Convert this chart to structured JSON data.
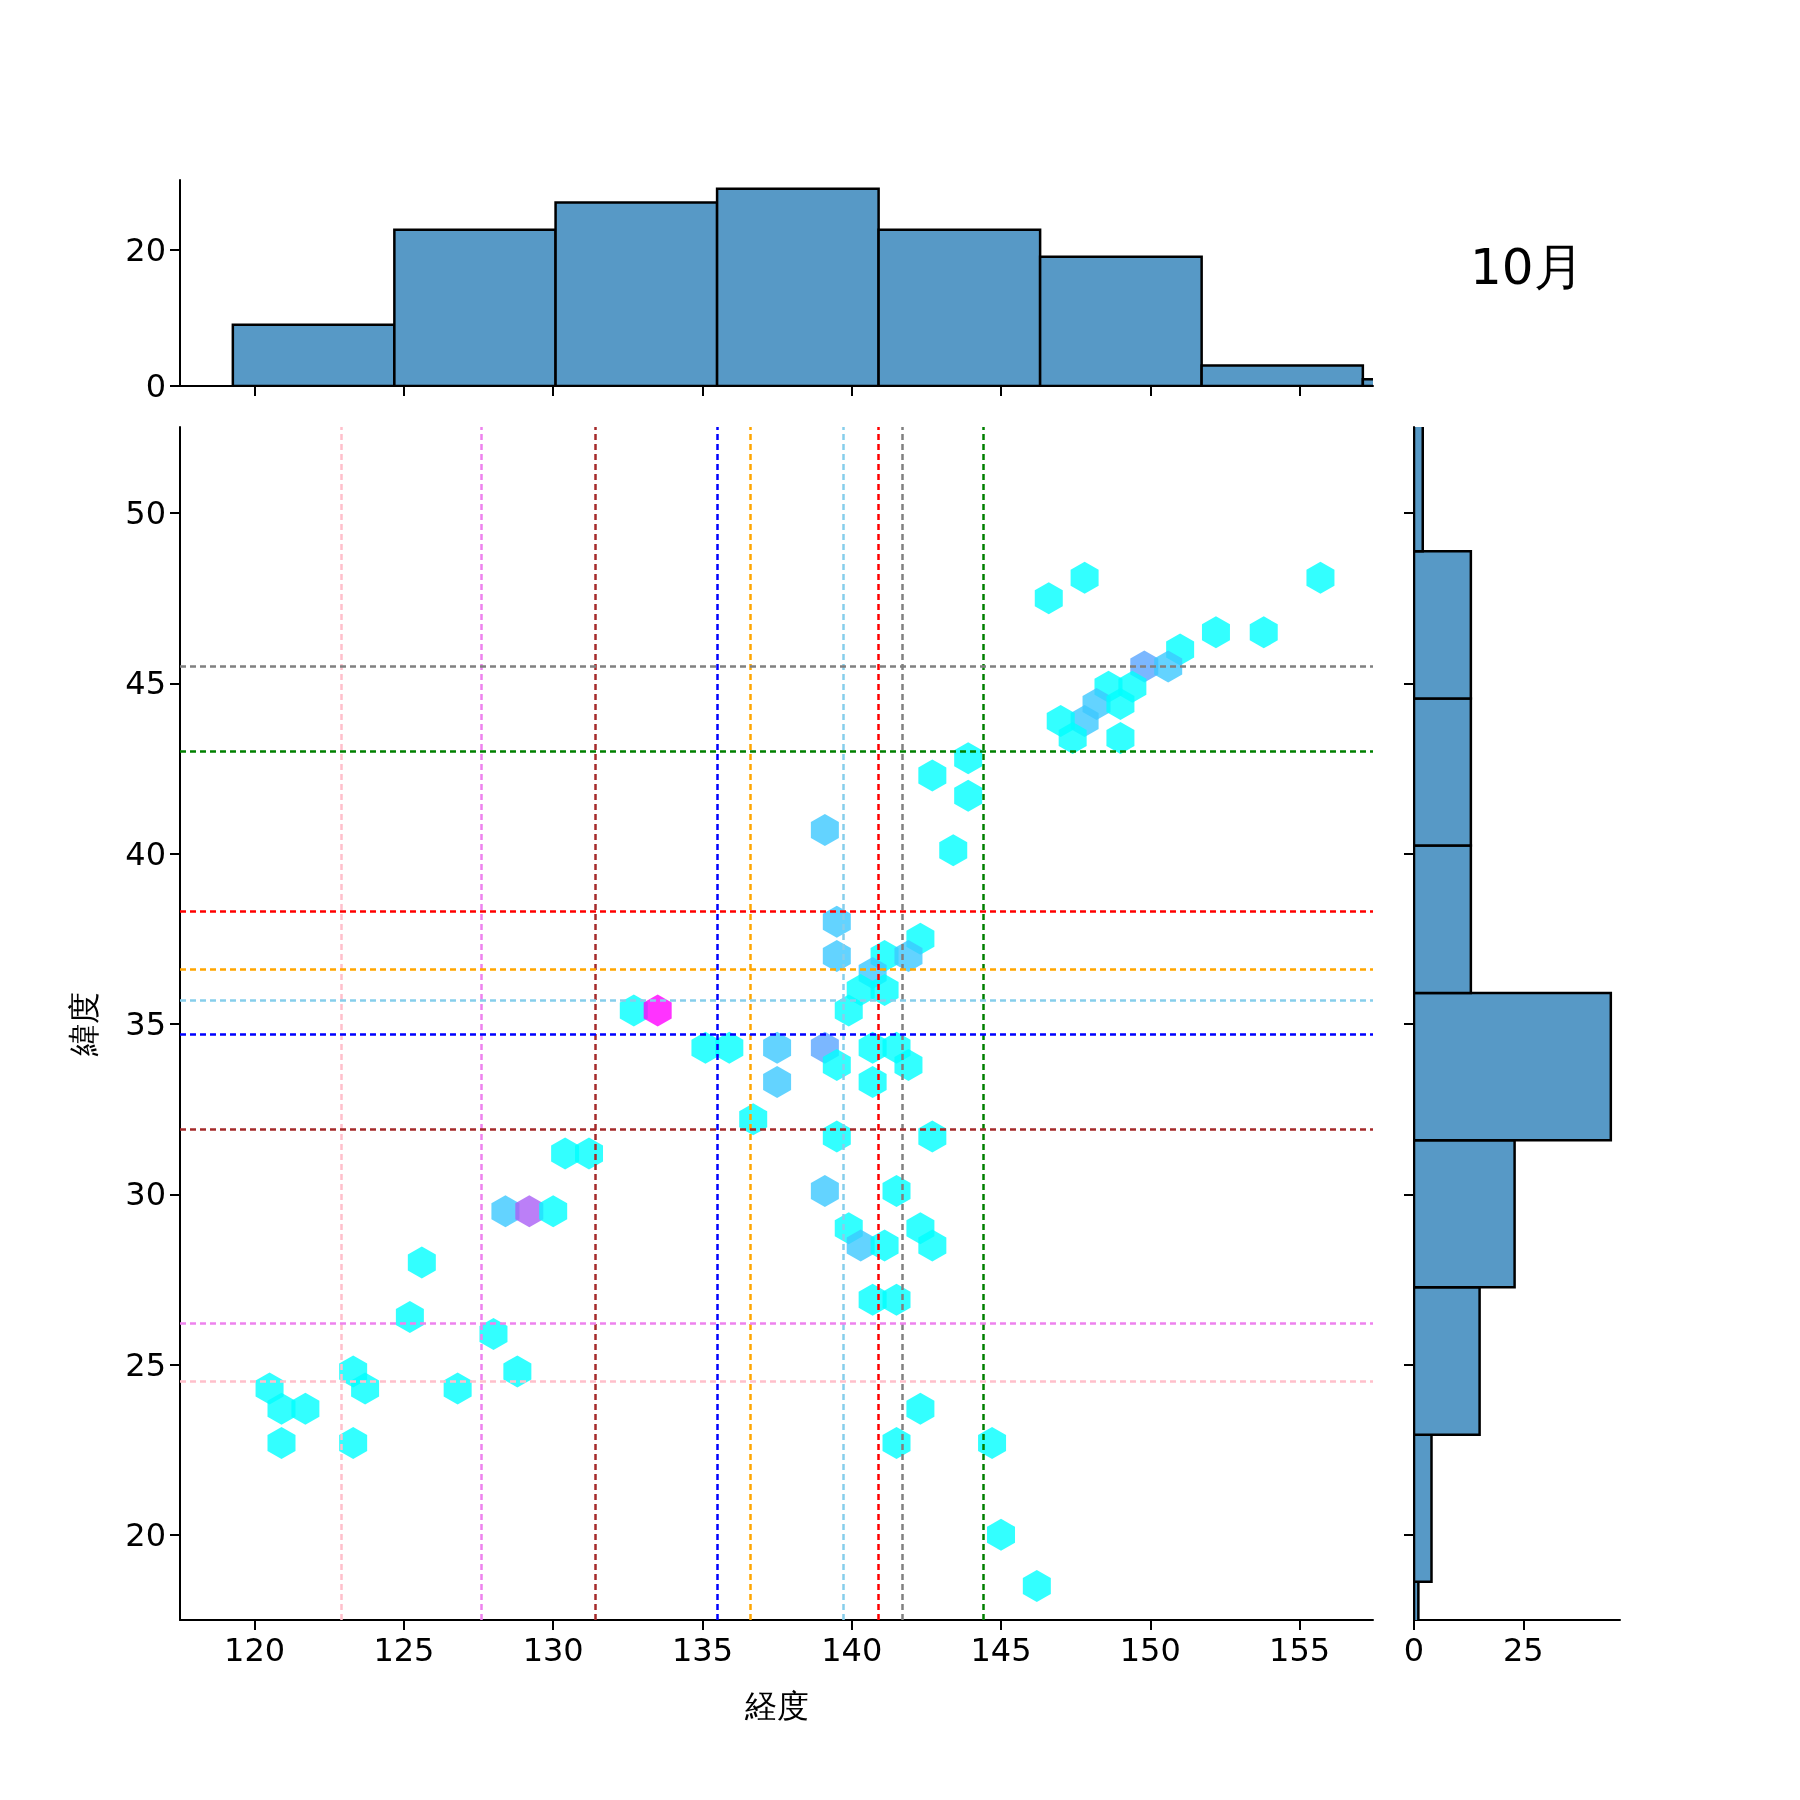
{
  "chart_data": [
    {
      "type": "histogram",
      "bins": [
        119.27,
        124.68,
        130.08,
        135.49,
        140.9,
        146.31,
        151.72,
        157.12,
        162.53
      ],
      "values": [
        9,
        23,
        27,
        29,
        23,
        19,
        3,
        1
      ],
      "color": "#5799c6",
      "xlim": [
        117.5,
        157.46
      ],
      "xticks": [
        120,
        125,
        130,
        135,
        140,
        145,
        150,
        155
      ],
      "ylim": [
        0,
        30.3
      ],
      "yticks": [
        0,
        20
      ],
      "tick_labels": "y",
      "annotations": [
        "10月"
      ]
    },
    {
      "type": "scatter",
      "xlabel": "経度",
      "ylabel": "緯度",
      "xlim": [
        117.5,
        157.46
      ],
      "ylim": [
        17.5,
        52.53
      ],
      "xticks": [
        120,
        125,
        130,
        135,
        140,
        145,
        150,
        155
      ],
      "yticks": [
        20,
        25,
        30,
        35,
        40,
        45,
        50
      ],
      "x": [
        155.7,
        147.8,
        146.6,
        152.2,
        153.8,
        151.0,
        149.8,
        150.6,
        148.6,
        149.4,
        148.2,
        149.0,
        147.8,
        147.0,
        147.4,
        149.0,
        143.9,
        142.7,
        143.9,
        139.1,
        143.4,
        139.5,
        142.3,
        139.5,
        141.1,
        141.9,
        140.7,
        140.3,
        141.1,
        139.9,
        132.7,
        133.5,
        135.1,
        135.9,
        137.5,
        139.1,
        140.7,
        141.5,
        139.5,
        141.9,
        137.5,
        140.7,
        136.7,
        139.5,
        142.7,
        130.4,
        131.2,
        139.1,
        141.5,
        128.4,
        129.2,
        130.0,
        139.9,
        142.3,
        140.3,
        141.1,
        142.7,
        125.6,
        140.7,
        141.5,
        125.2,
        128.0,
        123.3,
        128.8,
        120.5,
        123.7,
        126.8,
        120.9,
        121.7,
        142.3,
        120.9,
        123.3,
        141.5,
        144.7,
        145.0,
        146.2
      ],
      "values": [
        48.1,
        48.1,
        47.5,
        46.5,
        46.5,
        46.0,
        45.5,
        45.5,
        44.9,
        44.9,
        44.4,
        44.4,
        43.9,
        43.9,
        43.4,
        43.4,
        42.8,
        42.3,
        41.7,
        40.7,
        40.1,
        38.0,
        37.5,
        37.0,
        37.0,
        37.0,
        36.5,
        36.0,
        36.0,
        35.4,
        35.4,
        35.4,
        34.3,
        34.3,
        34.3,
        34.3,
        34.3,
        34.3,
        33.8,
        33.8,
        33.3,
        33.3,
        32.2,
        31.7,
        31.7,
        31.2,
        31.2,
        30.1,
        30.1,
        29.5,
        29.5,
        29.5,
        29.0,
        29.0,
        28.5,
        28.5,
        28.5,
        28.0,
        26.9,
        26.9,
        26.4,
        25.9,
        24.8,
        24.8,
        24.3,
        24.3,
        24.3,
        23.7,
        23.7,
        23.7,
        22.7,
        22.7,
        22.7,
        22.7,
        20.0,
        18.5
      ],
      "colors": [
        "#00ffff",
        "#00ffff",
        "#00ffff",
        "#00ffff",
        "#00ffff",
        "#00ffff",
        "#5aa5ff",
        "#3cc8ff",
        "#00ffff",
        "#00ffff",
        "#3cc8ff",
        "#00ffff",
        "#3cc8ff",
        "#00ffff",
        "#00ffff",
        "#00ffff",
        "#00ffff",
        "#00ffff",
        "#00ffff",
        "#3cc8ff",
        "#00ffff",
        "#3cc8ff",
        "#00ffff",
        "#3cc8ff",
        "#00ffff",
        "#3cc8ff",
        "#3cc8ff",
        "#00ffff",
        "#00ffff",
        "#00ffff",
        "#00ffff",
        "#ff00ff",
        "#00ffff",
        "#00ffff",
        "#3cc8ff",
        "#5aa5ff",
        "#00ffff",
        "#00ffff",
        "#00ffff",
        "#00ffff",
        "#3cc8ff",
        "#00ffff",
        "#00ffff",
        "#00ffff",
        "#00ffff",
        "#00ffff",
        "#00ffff",
        "#3cc8ff",
        "#00ffff",
        "#3cc8ff",
        "#aa5ff5",
        "#00ffff",
        "#00ffff",
        "#00ffff",
        "#3cc8ff",
        "#00ffff",
        "#00ffff",
        "#00ffff",
        "#00ffff",
        "#00ffff",
        "#00ffff",
        "#00ffff",
        "#00ffff",
        "#00ffff",
        "#00ffff",
        "#00ffff",
        "#00ffff",
        "#00ffff",
        "#00ffff",
        "#00ffff",
        "#00ffff",
        "#00ffff",
        "#00ffff",
        "#00ffff",
        "#00ffff",
        "#00ffff"
      ],
      "line_style": "dashed",
      "ref_lines": [
        {
          "axis": "x",
          "value": 122.9,
          "color": "#ffc0cb"
        },
        {
          "axis": "x",
          "value": 127.6,
          "color": "#ee82ee"
        },
        {
          "axis": "x",
          "value": 131.4,
          "color": "#a52a2a"
        },
        {
          "axis": "x",
          "value": 135.5,
          "color": "#0000ff"
        },
        {
          "axis": "x",
          "value": 136.6,
          "color": "#ffa500"
        },
        {
          "axis": "x",
          "value": 139.7,
          "color": "#87ceeb"
        },
        {
          "axis": "x",
          "value": 140.9,
          "color": "#ff0000"
        },
        {
          "axis": "x",
          "value": 141.7,
          "color": "#808080"
        },
        {
          "axis": "x",
          "value": 144.4,
          "color": "#008000"
        },
        {
          "axis": "y",
          "value": 45.5,
          "color": "#808080"
        },
        {
          "axis": "y",
          "value": 43.0,
          "color": "#008000"
        },
        {
          "axis": "y",
          "value": 38.3,
          "color": "#ff0000"
        },
        {
          "axis": "y",
          "value": 36.6,
          "color": "#ffa500"
        },
        {
          "axis": "y",
          "value": 35.7,
          "color": "#87ceeb"
        },
        {
          "axis": "y",
          "value": 34.7,
          "color": "#0000ff"
        },
        {
          "axis": "y",
          "value": 31.9,
          "color": "#a52a2a"
        },
        {
          "axis": "y",
          "value": 26.2,
          "color": "#ee82ee"
        },
        {
          "axis": "y",
          "value": 24.5,
          "color": "#ffc0cb"
        }
      ]
    },
    {
      "type": "histogram",
      "orientation": "horizontal",
      "bins": [
        14.3,
        18.62,
        22.94,
        27.27,
        31.59,
        35.91,
        40.24,
        44.56,
        48.88,
        53.21
      ],
      "values": [
        1,
        4,
        15,
        23,
        45,
        13,
        13,
        13,
        2
      ],
      "color": "#5799c6",
      "xlim": [
        0,
        47.1
      ],
      "xticks": [
        0,
        25
      ],
      "ylim": [
        17.5,
        52.53
      ],
      "yticks": [
        20,
        25,
        30,
        35,
        40,
        45,
        50
      ],
      "tick_labels": "x"
    }
  ]
}
